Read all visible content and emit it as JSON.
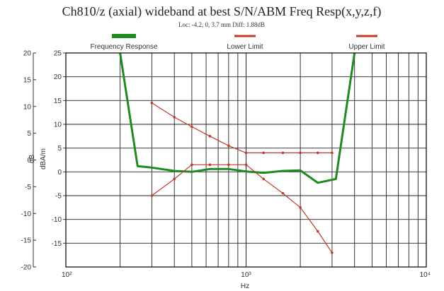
{
  "chart_data": {
    "type": "line",
    "title": "Ch810/z (axial) wideband at best S/N/ABM Freq Resp(x,y,z,f)",
    "subtitle": "Loc: -4.2, 0, 3.7 mm Diff: 1.88dB",
    "xlabel": "Hz",
    "ylabel_outer": "dB",
    "ylabel_inner": "dBA/m",
    "x_scale": "log",
    "xlim": [
      100,
      10000
    ],
    "x_tick_labels": [
      "10²",
      "10³",
      "10⁴"
    ],
    "ylim_outer": [
      -20,
      20
    ],
    "ylim_inner": [
      -20,
      25
    ],
    "y_ticks_outer": [
      20,
      15,
      10,
      5,
      0,
      -5,
      -10,
      -15,
      -20
    ],
    "y_ticks_inner": [
      25,
      20,
      15,
      10,
      5,
      0,
      -5,
      -10,
      -15
    ],
    "grid": true,
    "legend_position": "top",
    "series": [
      {
        "name": "Frequency Response",
        "color": "#1f8a1f",
        "points": [
          [
            200,
            25
          ],
          [
            250,
            1.2
          ],
          [
            300,
            0.9
          ],
          [
            400,
            0.2
          ],
          [
            500,
            0
          ],
          [
            630,
            0.6
          ],
          [
            800,
            0.6
          ],
          [
            1000,
            0.1
          ],
          [
            1250,
            -0.2
          ],
          [
            1600,
            0.2
          ],
          [
            2000,
            0.3
          ],
          [
            2500,
            -2.3
          ],
          [
            3150,
            -1.5
          ],
          [
            4000,
            25
          ]
        ]
      },
      {
        "name": "Lower Limit",
        "color": "#c0392b",
        "points": [
          [
            300,
            -5
          ],
          [
            400,
            -1.5
          ],
          [
            500,
            1.5
          ],
          [
            630,
            1.5
          ],
          [
            800,
            1.5
          ],
          [
            1000,
            1.5
          ],
          [
            1250,
            -1.5
          ],
          [
            1600,
            -4.5
          ],
          [
            2000,
            -7.5
          ],
          [
            2500,
            -12.5
          ],
          [
            3000,
            -17
          ]
        ]
      },
      {
        "name": "Upper Limit",
        "color": "#c0392b",
        "points": [
          [
            300,
            14.5
          ],
          [
            400,
            11.5
          ],
          [
            500,
            9.5
          ],
          [
            630,
            7.5
          ],
          [
            800,
            5.5
          ],
          [
            1000,
            4
          ],
          [
            1250,
            4
          ],
          [
            1600,
            4
          ],
          [
            2000,
            4
          ],
          [
            2500,
            4
          ],
          [
            3000,
            4
          ]
        ]
      }
    ]
  }
}
